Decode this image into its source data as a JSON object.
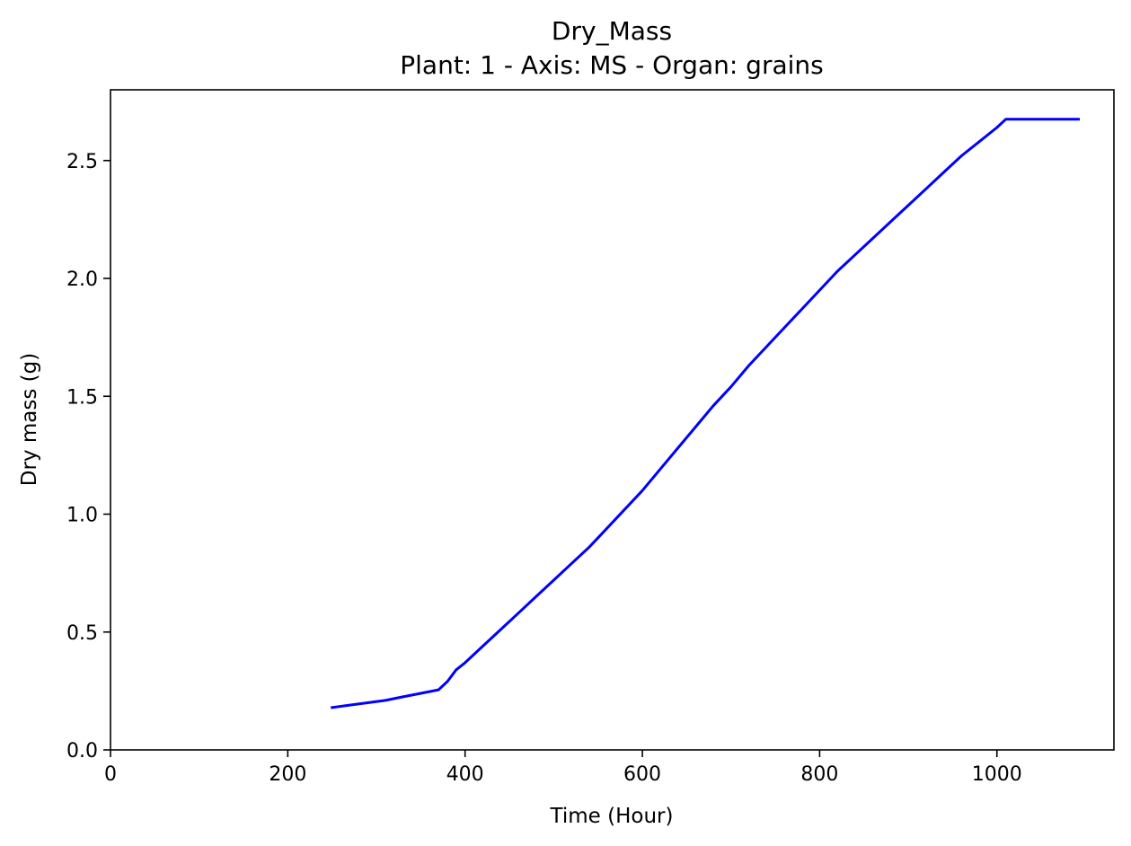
{
  "chart_data": {
    "type": "line",
    "title": "Dry_Mass",
    "subtitle": "Plant: 1 - Axis: MS - Organ: grains",
    "xlabel": "Time (Hour)",
    "ylabel": "Dry mass (g)",
    "xlim": [
      0,
      1132
    ],
    "ylim": [
      0,
      2.8
    ],
    "xticks": [
      0,
      200,
      400,
      600,
      800,
      1000
    ],
    "yticks": [
      0.0,
      0.5,
      1.0,
      1.5,
      2.0,
      2.5
    ],
    "xtick_labels": [
      "0",
      "200",
      "400",
      "600",
      "800",
      "1000"
    ],
    "ytick_labels": [
      "0.0",
      "0.5",
      "1.0",
      "1.5",
      "2.0",
      "2.5"
    ],
    "grid": false,
    "series": [
      {
        "color": "#0000ff",
        "x": [
          250,
          270,
          290,
          310,
          330,
          350,
          370,
          380,
          390,
          400,
          420,
          440,
          460,
          480,
          500,
          520,
          540,
          560,
          580,
          600,
          620,
          640,
          660,
          680,
          700,
          720,
          740,
          760,
          780,
          800,
          820,
          840,
          860,
          880,
          900,
          920,
          940,
          960,
          980,
          1000,
          1010,
          1020,
          1050,
          1092
        ],
        "y": [
          0.18,
          0.19,
          0.2,
          0.21,
          0.225,
          0.24,
          0.255,
          0.29,
          0.34,
          0.37,
          0.44,
          0.51,
          0.58,
          0.65,
          0.72,
          0.79,
          0.86,
          0.94,
          1.02,
          1.1,
          1.19,
          1.28,
          1.37,
          1.46,
          1.54,
          1.63,
          1.71,
          1.79,
          1.87,
          1.95,
          2.03,
          2.1,
          2.17,
          2.24,
          2.31,
          2.38,
          2.45,
          2.52,
          2.58,
          2.64,
          2.675,
          2.675,
          2.675,
          2.675
        ]
      }
    ]
  }
}
